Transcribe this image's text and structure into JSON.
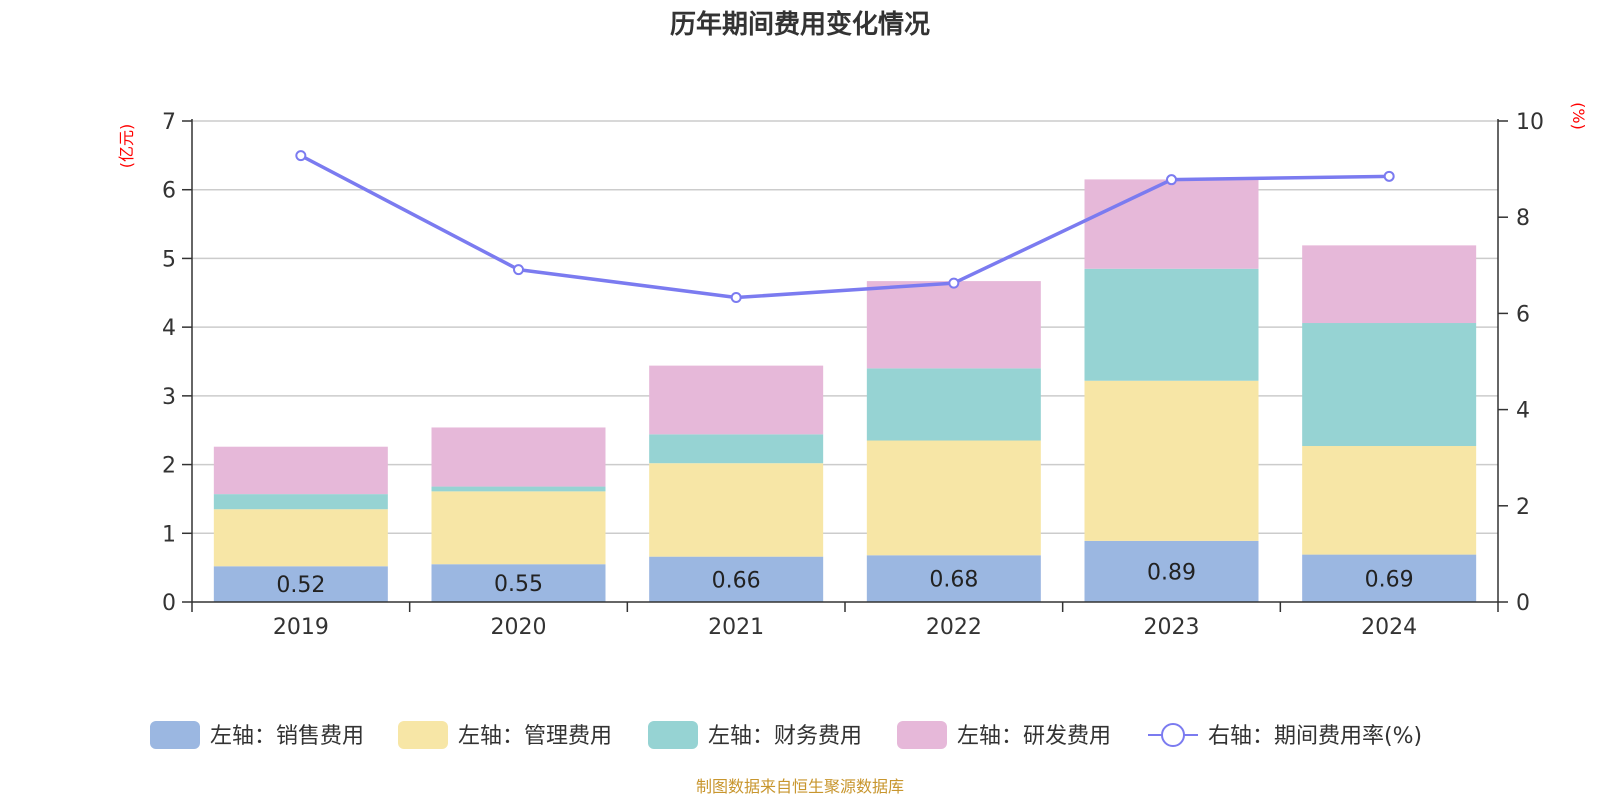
{
  "chart_data": {
    "type": "bar",
    "title": "历年期间费用变化情况",
    "categories": [
      "2019",
      "2020",
      "2021",
      "2022",
      "2023",
      "2024"
    ],
    "left_axis": {
      "unit": "(亿元)",
      "ylim": [
        0,
        7
      ],
      "ticks": [
        0,
        1,
        2,
        3,
        4,
        5,
        6,
        7
      ]
    },
    "right_axis": {
      "unit": "(%)",
      "ylim": [
        0,
        10
      ],
      "ticks": [
        0,
        2,
        4,
        6,
        8,
        10
      ]
    },
    "grid": true,
    "legend_position": "bottom",
    "series": [
      {
        "name": "左轴：销售费用",
        "type": "bar",
        "axis": "left",
        "color": "#9bb7e1",
        "values": [
          0.52,
          0.55,
          0.66,
          0.68,
          0.89,
          0.69
        ],
        "labels": [
          "0.52",
          "0.55",
          "0.66",
          "0.68",
          "0.89",
          "0.69"
        ]
      },
      {
        "name": "左轴：管理费用",
        "type": "bar",
        "axis": "left",
        "color": "#f7e6a6",
        "values": [
          0.83,
          1.06,
          1.36,
          1.67,
          2.33,
          1.58
        ]
      },
      {
        "name": "左轴：财务费用",
        "type": "bar",
        "axis": "left",
        "color": "#96d3d3",
        "values": [
          0.22,
          0.07,
          0.42,
          1.05,
          1.63,
          1.79
        ]
      },
      {
        "name": "左轴：研发费用",
        "type": "bar",
        "axis": "left",
        "color": "#e6b8d9",
        "values": [
          0.69,
          0.86,
          1.0,
          1.27,
          1.3,
          1.13
        ]
      },
      {
        "name": "右轴：期间费用率(%)",
        "type": "line",
        "axis": "right",
        "color": "#7b7bf0",
        "values": [
          9.28,
          6.91,
          6.33,
          6.63,
          8.78,
          8.85
        ]
      }
    ]
  },
  "footer": {
    "source": "制图数据来自恒生聚源数据库"
  }
}
